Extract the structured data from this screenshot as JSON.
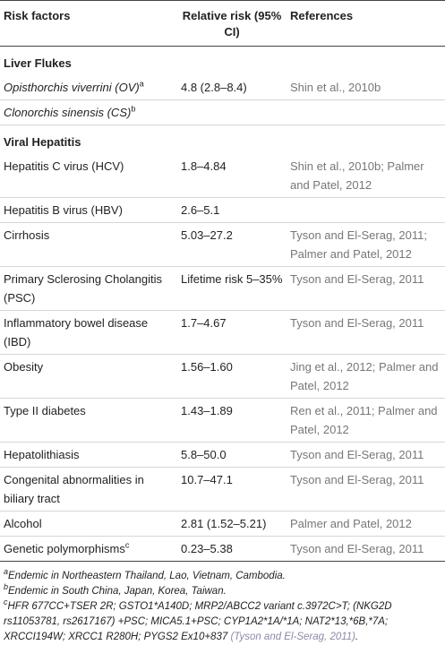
{
  "table": {
    "header": [
      "Risk factors",
      "Relative risk (95% CI)",
      "References"
    ],
    "sections": [
      {
        "title": "Liver Flukes",
        "rows": [
          {
            "factor": "Opisthorchis viverrini (OV)",
            "sup": "a",
            "risk": "4.8 (2.8–8.4)",
            "reference": "Shin et al., 2010b",
            "italic": true
          },
          {
            "factor": "Clonorchis sinensis (CS)",
            "sup": "b",
            "italic": true
          }
        ]
      },
      {
        "title": "Viral Hepatitis",
        "rows": [
          {
            "factor": "Hepatitis C virus (HCV)",
            "risk": "1.8–4.84",
            "reference": "Shin et al., 2010b; Palmer and Patel, 2012"
          },
          {
            "factor": "Hepatitis B virus (HBV)",
            "risk": "2.6–5.1"
          },
          {
            "factor": "Cirrhosis",
            "risk": "5.03–27.2",
            "reference": "Tyson and El-Serag, 2011; Palmer and Patel, 2012"
          },
          {
            "factor": "Primary Sclerosing Cholangitis (PSC)",
            "risk": "Lifetime risk 5–35%",
            "reference": "Tyson and El-Serag, 2011"
          },
          {
            "factor": "Inflammatory bowel disease (IBD)",
            "risk": "1.7–4.67",
            "reference": "Tyson and El-Serag, 2011"
          },
          {
            "factor": "Obesity",
            "risk": "1.56–1.60",
            "reference": "Jing et al., 2012; Palmer and Patel, 2012"
          },
          {
            "factor": "Type II diabetes",
            "risk": "1.43–1.89",
            "reference": "Ren et al., 2011; Palmer and Patel, 2012"
          },
          {
            "factor": "Hepatolithiasis",
            "risk": "5.8–50.0",
            "reference": "Tyson and El-Serag, 2011"
          },
          {
            "factor": "Congenital abnormalities in biliary tract",
            "risk": "10.7–47.1",
            "reference": "Tyson and El-Serag, 2011"
          },
          {
            "factor": "Alcohol",
            "risk": "2.81 (1.52–5.21)",
            "reference": "Palmer and Patel, 2012"
          },
          {
            "factor": "Genetic polymorphisms",
            "sup": "c",
            "risk": "0.23–5.38",
            "reference": "Tyson and El-Serag, 2011"
          }
        ]
      }
    ],
    "footnotes": [
      {
        "mark": "a",
        "text": "Endemic in Northeastern Thailand, Lao, Vietnam, Cambodia."
      },
      {
        "mark": "b",
        "text": "Endemic in South China, Japan, Korea, Taiwan."
      },
      {
        "mark": "c",
        "text": "HFR 677CC+TSER 2R; GSTO1*A140D; MRP2/ABCC2 variant c.3972C>T; (NKG2D rs11053781, rs2617167) +PSC; MICA5.1+PSC; CYP1A2*1A/*1A; NAT2*13,*6B,*7A; XRCCI194W; XRCC1 R280H; PYGS2 Ex10+837 ",
        "cite": "(Tyson and El-Serag, 2011)",
        "end": "."
      }
    ]
  }
}
